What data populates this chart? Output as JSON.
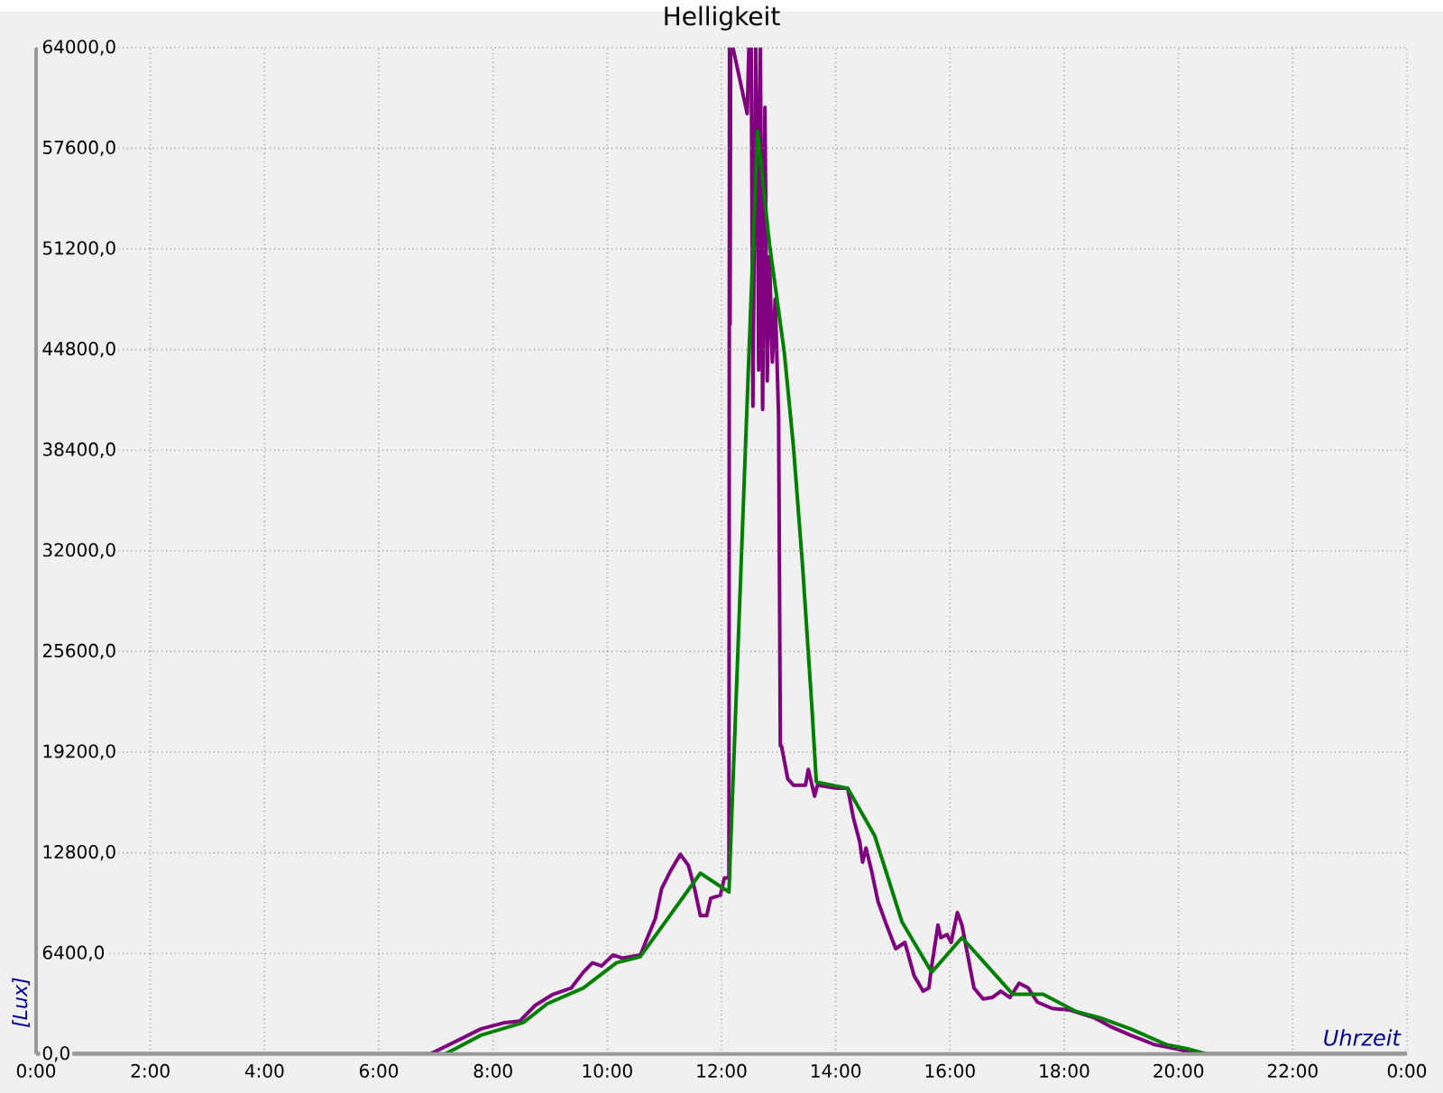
{
  "chart_data": {
    "type": "line",
    "title": "Helligkeit",
    "xlabel": "Uhrzeit",
    "ylabel": "[Lux]",
    "xlim": [
      0,
      24
    ],
    "ylim": [
      0,
      64000
    ],
    "grid": true,
    "xticks": [
      {
        "value": 0,
        "label": "0:00"
      },
      {
        "value": 2,
        "label": "2:00"
      },
      {
        "value": 4,
        "label": "4:00"
      },
      {
        "value": 6,
        "label": "6:00"
      },
      {
        "value": 8,
        "label": "8:00"
      },
      {
        "value": 10,
        "label": "10:00"
      },
      {
        "value": 12,
        "label": "12:00"
      },
      {
        "value": 14,
        "label": "14:00"
      },
      {
        "value": 16,
        "label": "16:00"
      },
      {
        "value": 18,
        "label": "18:00"
      },
      {
        "value": 20,
        "label": "20:00"
      },
      {
        "value": 22,
        "label": "22:00"
      },
      {
        "value": 24,
        "label": "0:00"
      }
    ],
    "yticks": [
      {
        "value": 0,
        "label": "0,0"
      },
      {
        "value": 6400,
        "label": "6400,0"
      },
      {
        "value": 12800,
        "label": "12800,0"
      },
      {
        "value": 19200,
        "label": "19200,0"
      },
      {
        "value": 25600,
        "label": "25600,0"
      },
      {
        "value": 32000,
        "label": "32000,0"
      },
      {
        "value": 38400,
        "label": "38400,0"
      },
      {
        "value": 44800,
        "label": "44800,0"
      },
      {
        "value": 51200,
        "label": "51200,0"
      },
      {
        "value": 57600,
        "label": "57600,0"
      },
      {
        "value": 64000,
        "label": "64000,0"
      }
    ],
    "series": [
      {
        "color": "#800080",
        "x": [
          0,
          6.9,
          7.79,
          8.21,
          8.47,
          8.74,
          9.05,
          9.37,
          9.58,
          9.74,
          9.9,
          10.1,
          10.26,
          10.58,
          10.68,
          10.84,
          10.95,
          11.1,
          11.28,
          11.42,
          11.53,
          11.63,
          11.74,
          11.81,
          11.98,
          12.05,
          12.13,
          12.14,
          12.15,
          12.16,
          12.2,
          12.45,
          12.48,
          12.52,
          12.55,
          12.6,
          12.63,
          12.65,
          12.68,
          12.72,
          12.76,
          12.8,
          12.84,
          12.89,
          12.94,
          13.0,
          13.03,
          13.05,
          13.16,
          13.26,
          13.47,
          13.52,
          13.63,
          13.68,
          14.0,
          14.21,
          14.31,
          14.42,
          14.47,
          14.53,
          14.63,
          14.74,
          14.89,
          15.05,
          15.21,
          15.37,
          15.53,
          15.63,
          15.68,
          15.79,
          15.84,
          15.95,
          16.02,
          16.13,
          16.21,
          16.32,
          16.42,
          16.58,
          16.74,
          16.89,
          17.05,
          17.21,
          17.37,
          17.53,
          17.79,
          18.1,
          18.53,
          18.84,
          19.16,
          19.58,
          20.0,
          20.3,
          24
        ],
        "values": [
          0,
          0,
          1600,
          2000,
          2100,
          3100,
          3800,
          4200,
          5200,
          5800,
          5600,
          6300,
          6100,
          6300,
          7200,
          8600,
          10500,
          11600,
          12700,
          12000,
          10500,
          8800,
          8800,
          9900,
          10100,
          11200,
          11200,
          64000,
          46400,
          64000,
          64000,
          59800,
          64000,
          64000,
          41200,
          64000,
          56000,
          43500,
          64000,
          41000,
          60200,
          42800,
          50700,
          44000,
          48000,
          40500,
          19600,
          19600,
          17500,
          17100,
          17100,
          18100,
          16400,
          17100,
          16900,
          16900,
          15000,
          13500,
          12200,
          13100,
          11600,
          9700,
          8200,
          6700,
          7100,
          5000,
          4000,
          4200,
          5600,
          8200,
          7400,
          7600,
          7100,
          9000,
          8200,
          6100,
          4200,
          3500,
          3600,
          4000,
          3600,
          4500,
          4200,
          3300,
          2900,
          2800,
          2300,
          1700,
          1200,
          600,
          300,
          0,
          0
        ]
      },
      {
        "color": "#008000",
        "x": [
          0,
          7.16,
          7.79,
          8.53,
          8.95,
          9.58,
          10.16,
          10.58,
          11.63,
          12.13,
          12.47,
          12.63,
          12.84,
          13.1,
          13.26,
          13.42,
          13.58,
          13.66,
          14.21,
          14.68,
          15.16,
          15.68,
          16.21,
          16.68,
          17.1,
          17.63,
          18.21,
          18.63,
          19.16,
          19.79,
          20.2,
          20.5,
          24
        ],
        "values": [
          0,
          0,
          1200,
          2000,
          3200,
          4200,
          5800,
          6200,
          11500,
          10300,
          43500,
          58700,
          51500,
          44600,
          38600,
          31000,
          22200,
          17300,
          16900,
          13900,
          8400,
          5200,
          7400,
          5500,
          3800,
          3800,
          2700,
          2300,
          1600,
          600,
          300,
          0,
          0
        ]
      }
    ]
  }
}
